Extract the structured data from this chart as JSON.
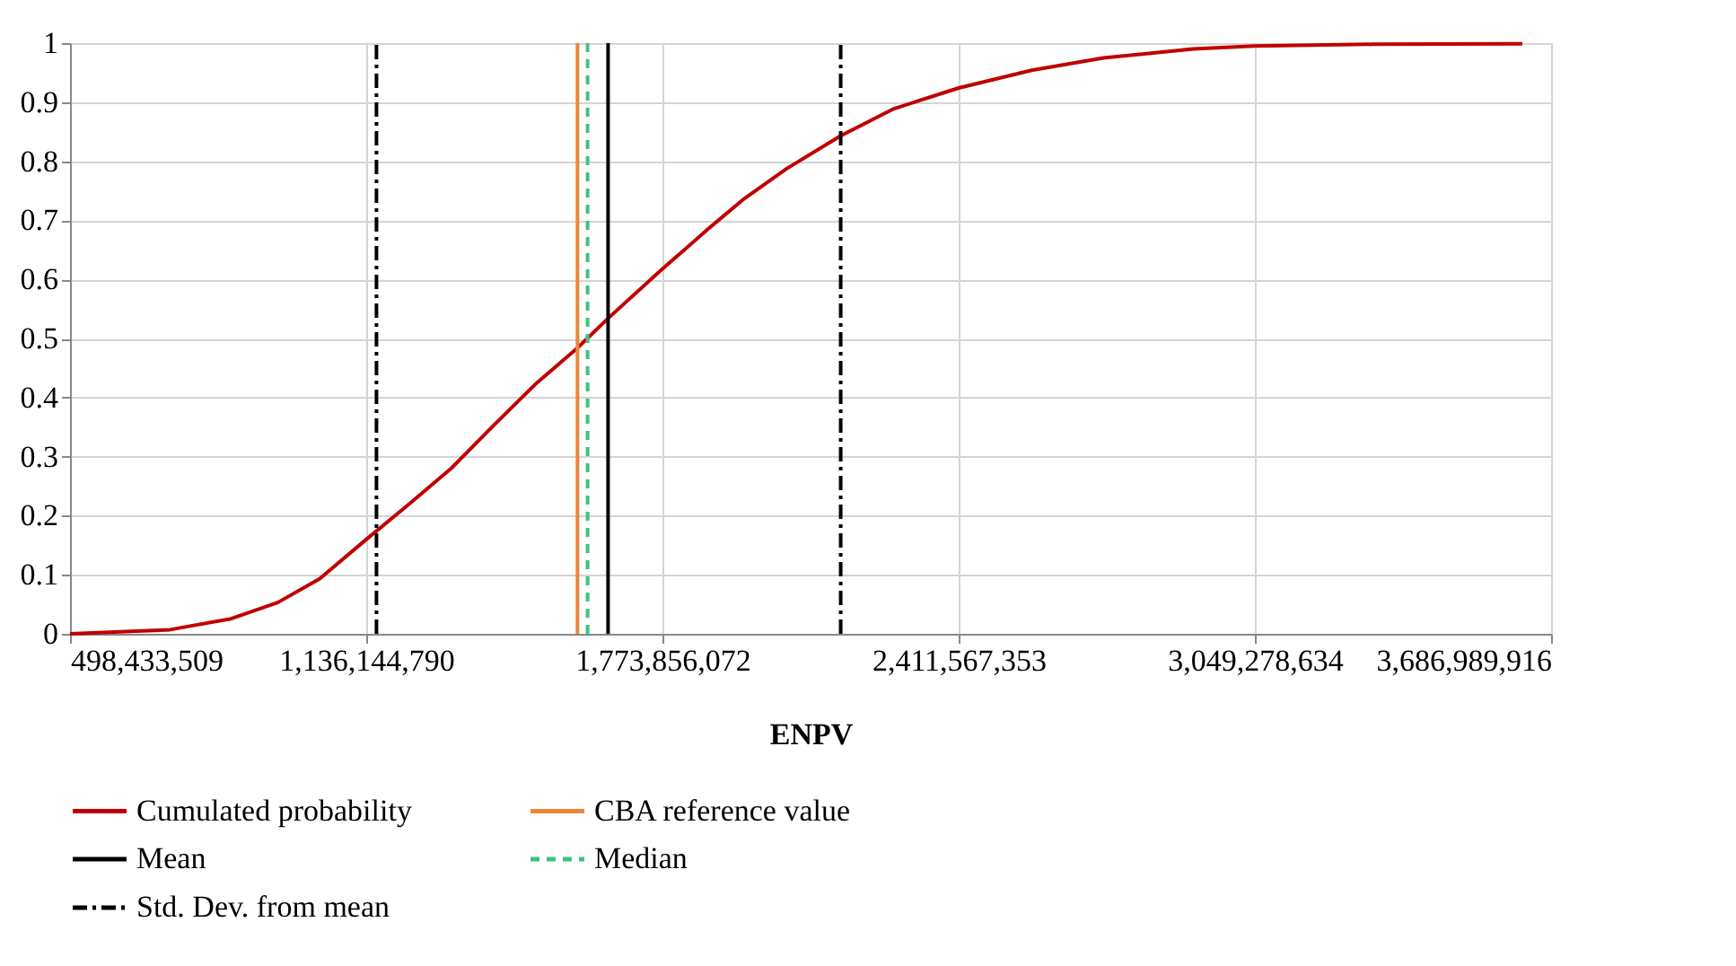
{
  "chart_data": {
    "type": "line",
    "xlabel": "ENPV",
    "series": [
      {
        "name": "Cumulated probability",
        "color": "#c00000",
        "x": [
          498433509,
          713700000,
          842400000,
          945600000,
          1035700000,
          1135000000,
          1228900000,
          1319000000,
          1409400000,
          1499500000,
          1589500000,
          1656800000,
          1770000000,
          1873200000,
          1950500000,
          2040500000,
          2157600000,
          2272400000,
          2411600000,
          2568900000,
          2723500000,
          2916700000,
          3048100000,
          3303200000,
          3625100000
        ],
        "values": [
          0,
          0.007,
          0.025,
          0.053,
          0.093,
          0.159,
          0.22,
          0.28,
          0.352,
          0.422,
          0.483,
          0.534,
          0.615,
          0.686,
          0.737,
          0.787,
          0.843,
          0.889,
          0.924,
          0.954,
          0.975,
          0.99,
          0.995,
          0.998,
          0.999
        ]
      }
    ],
    "ref_lines": [
      {
        "axis": "x",
        "value": 1591000000,
        "label": "CBA reference value",
        "color": "#e8873a",
        "line_style": "solid"
      },
      {
        "axis": "x",
        "value": 1656800000,
        "label": "Mean",
        "color": "#000000",
        "line_style": "solid"
      },
      {
        "axis": "x",
        "value": 1612700000,
        "label": "Median",
        "color": "#3cc47c",
        "line_style": "dashed"
      },
      {
        "axis": "x",
        "value": 1158200000,
        "label": "Std. Dev. from mean",
        "color": "#000000",
        "line_style": "dashdot"
      },
      {
        "axis": "x",
        "value": 2157600000,
        "color": "#000000",
        "line_style": "dashdot"
      }
    ],
    "xlim": [
      498433509,
      3686989916
    ],
    "xticks": [
      {
        "value": 498433509,
        "label": "498,433,509"
      },
      {
        "value": 1136144790,
        "label": "1,136,144,790"
      },
      {
        "value": 1773856072,
        "label": "1,773,856,072"
      },
      {
        "value": 2411567353,
        "label": "2,411,567,353"
      },
      {
        "value": 3049278634,
        "label": "3,049,278,634"
      },
      {
        "value": 3686989916,
        "label": "3,686,989,916"
      }
    ],
    "ylim": [
      0,
      1
    ],
    "yticks": [
      0,
      0.1,
      0.2,
      0.3,
      0.4,
      0.5,
      0.6,
      0.7,
      0.8,
      0.9,
      1
    ],
    "grid": true,
    "legend": "bottom",
    "line_style": "solid",
    "marker": "none"
  }
}
